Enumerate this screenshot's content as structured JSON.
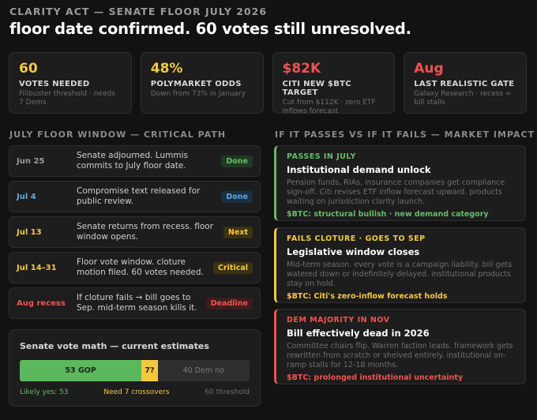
{
  "colors": {
    "yellow": "#f5c842",
    "red": "#ef5350",
    "green": "#66bb6a",
    "blue": "#5aa9e6",
    "background": "#121212",
    "card": "#1d1d1d"
  },
  "header": {
    "kicker": "CLARITY ACT — SENATE FLOOR JULY 2026",
    "headline": "floor date confirmed. 60 votes still unresolved."
  },
  "stats": [
    {
      "value": "60",
      "label": "VOTES NEEDED",
      "sub": "Filibuster threshold · needs 7 Dems",
      "color": "#f5c842"
    },
    {
      "value": "48%",
      "label": "POLYMARKET ODDS",
      "sub": "Down from 73% in January",
      "color": "#f5c842"
    },
    {
      "value": "$82K",
      "label": "CITI NEW $BTC TARGET",
      "sub": "Cut from $112K · zero ETF inflows forecast",
      "color": "#ef5350"
    },
    {
      "value": "Aug",
      "label": "LAST REALISTIC GATE",
      "sub": "Galaxy Research · recess = bill stalls",
      "color": "#ef5350"
    }
  ],
  "timeline": {
    "title": "JULY FLOOR WINDOW — CRITICAL PATH",
    "rows": [
      {
        "date": "Jun 25",
        "text": "Senate adjourned. Lummis commits to July floor date.",
        "badge": "Done",
        "date_color": "#9a9a9a",
        "badge_color": "#66bb6a",
        "badge_bg": "#1f3a22"
      },
      {
        "date": "Jul 4",
        "text": "Compromise text released for public review.",
        "badge": "Done",
        "date_color": "#5aa9e6",
        "badge_color": "#5aa9e6",
        "badge_bg": "#1c2f40"
      },
      {
        "date": "Jul 13",
        "text": "Senate returns from recess. floor window opens.",
        "badge": "Next",
        "date_color": "#f5c842",
        "badge_color": "#f5c842",
        "badge_bg": "#3b3214"
      },
      {
        "date": "Jul 14–31",
        "text": "Floor vote window. cloture motion filed. 60 votes needed.",
        "badge": "Critical",
        "date_color": "#f5c842",
        "badge_color": "#f5c842",
        "badge_bg": "#3b3214"
      },
      {
        "date": "Aug recess",
        "text": "If cloture fails → bill goes to Sep. mid-term season kills it.",
        "badge": "Deadline",
        "date_color": "#ef5350",
        "badge_color": "#ef5350",
        "badge_bg": "#3d1d1c"
      }
    ]
  },
  "vote_math": {
    "title": "Senate vote math — current estimates",
    "gop_label": "53 GOP",
    "gop_value": 53,
    "swing_label": "7?",
    "swing_value": 7,
    "dem_label": "40 Dem no",
    "dem_value": 40,
    "likely_yes": "Likely yes: 53",
    "need": "Need 7 crossovers",
    "threshold": "60 threshold"
  },
  "impact": {
    "title": "IF IT PASSES VS IF IT FAILS — MARKET IMPACT",
    "cards": [
      {
        "tag": "PASSES IN JULY",
        "title": "Institutional demand unlock",
        "body": "Pension funds, RIAs, insurance companies get compliance sign-off. Citi revises ETF inflow forecast upward. products waiting on jurisdiction clarity launch.",
        "foot": "$BTC: structural bullish · new demand category",
        "color": "#66bb6a"
      },
      {
        "tag": "FAILS CLOTURE · GOES TO SEP",
        "title": "Legislative window closes",
        "body": "Mid-term season. every vote is a campaign liability. bill gets watered down or indefinitely delayed. institutional products stay on hold.",
        "foot": "$BTC: Citi's zero-inflow forecast holds",
        "color": "#f5c842"
      },
      {
        "tag": "DEM MAJORITY IN NOV",
        "title": "Bill effectively dead in 2026",
        "body": "Committee chairs flip. Warren faction leads. framework gets rewritten from scratch or shelved entirely. institutional on-ramp stalls for 12-18 months.",
        "foot": "$BTC: prolonged institutional uncertainty",
        "color": "#ef5350"
      }
    ]
  }
}
